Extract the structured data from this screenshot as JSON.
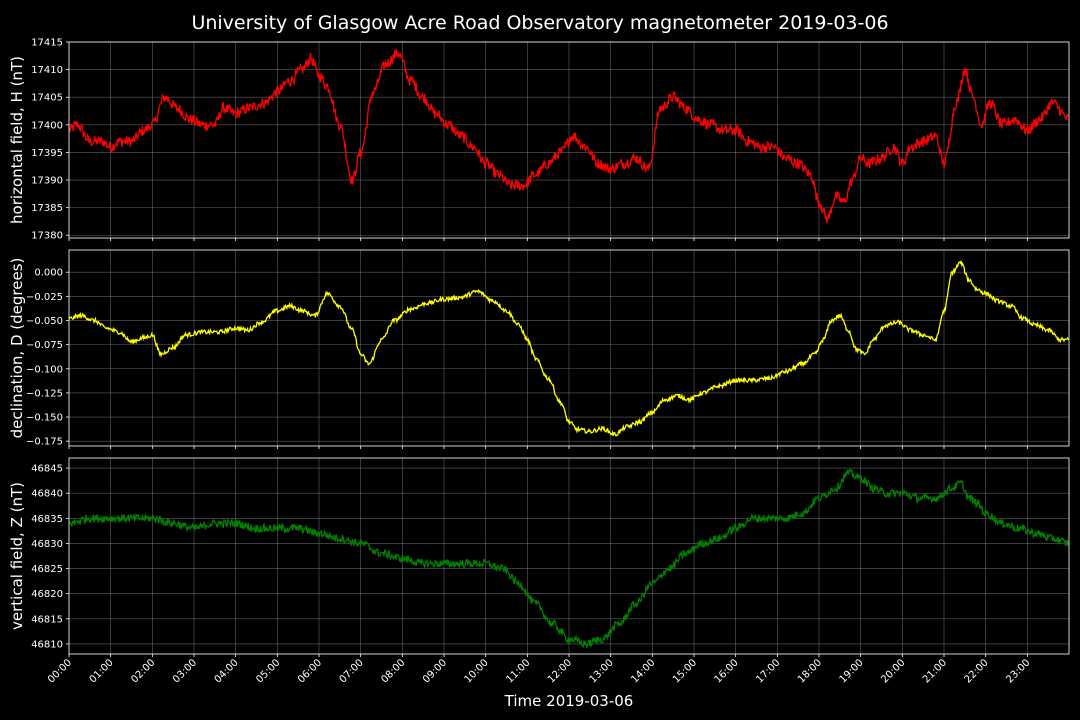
{
  "chart_data": {
    "type": "line",
    "title": "University of Glasgow Acre Road Observatory magnetometer 2019-03-06",
    "xlabel": "Time 2019-03-06",
    "x_ticks": [
      "00:00",
      "01:00",
      "02:00",
      "03:00",
      "04:00",
      "05:00",
      "06:00",
      "07:00",
      "08:00",
      "09:00",
      "10:00",
      "11:00",
      "12:00",
      "13:00",
      "14:00",
      "15:00",
      "16:00",
      "17:00",
      "18:00",
      "19:00",
      "20:00",
      "21:00",
      "22:00",
      "23:00"
    ],
    "xlim_hours": [
      0,
      24
    ],
    "grid": true,
    "panels": [
      {
        "ylabel": "horizontal field, H (nT)",
        "color": "#ff0000",
        "ylim": [
          17379.5,
          17415
        ],
        "yticks": [
          17380,
          17385,
          17390,
          17395,
          17400,
          17405,
          17410,
          17415
        ],
        "ytick_labels": [
          "17380",
          "17385",
          "17390",
          "17395",
          "17400",
          "17405",
          "17410",
          "17415"
        ],
        "noise": 1.0,
        "series": {
          "x_hours": [
            0,
            0.2,
            0.5,
            0.8,
            1.0,
            1.2,
            1.5,
            1.8,
            2.0,
            2.3,
            2.6,
            2.9,
            3.2,
            3.5,
            3.7,
            4.0,
            4.3,
            4.7,
            5.0,
            5.3,
            5.6,
            5.8,
            6.0,
            6.2,
            6.5,
            6.8,
            7.0,
            7.3,
            7.6,
            7.9,
            8.2,
            8.5,
            8.8,
            9.1,
            9.4,
            9.7,
            10.0,
            10.3,
            10.6,
            10.9,
            11.2,
            11.5,
            11.8,
            12.1,
            12.4,
            12.7,
            13.0,
            13.3,
            13.6,
            13.9,
            14.2,
            14.5,
            14.8,
            15.1,
            15.4,
            15.7,
            16.0,
            16.3,
            16.6,
            16.9,
            17.2,
            17.5,
            17.8,
            18.0,
            18.2,
            18.4,
            18.6,
            18.8,
            19.0,
            19.2,
            19.5,
            19.8,
            20.0,
            20.2,
            20.5,
            20.8,
            21.0,
            21.3,
            21.5,
            21.7,
            21.9,
            22.1,
            22.4,
            22.7,
            23.0,
            23.3,
            23.6,
            24.0
          ],
          "y": [
            17399,
            17400,
            17397,
            17397,
            17396,
            17397,
            17397,
            17399,
            17400,
            17405,
            17403,
            17401,
            17400,
            17400,
            17403,
            17402,
            17403,
            17404,
            17406,
            17408,
            17410,
            17412,
            17409,
            17407,
            17400,
            17390,
            17395,
            17406,
            17411,
            17413,
            17408,
            17405,
            17402,
            17400,
            17398,
            17396,
            17393,
            17391,
            17389,
            17389,
            17391,
            17393,
            17395,
            17398,
            17396,
            17393,
            17392,
            17393,
            17394,
            17392,
            17403,
            17405,
            17403,
            17401,
            17400,
            17399,
            17399,
            17397,
            17396,
            17396,
            17394,
            17393,
            17391,
            17386,
            17383,
            17387,
            17386,
            17390,
            17394,
            17393,
            17394,
            17396,
            17393,
            17396,
            17397,
            17398,
            17393,
            17404,
            17410,
            17405,
            17400,
            17404,
            17400,
            17401,
            17399,
            17401,
            17404,
            17401
          ]
        }
      },
      {
        "ylabel": "declination, D (degrees)",
        "color": "#ffff00",
        "ylim": [
          -0.18,
          0.023
        ],
        "yticks": [
          0.0,
          -0.025,
          -0.05,
          -0.075,
          -0.1,
          -0.125,
          -0.15,
          -0.175
        ],
        "ytick_labels": [
          "0.000",
          "−0.025",
          "−0.050",
          "−0.075",
          "−0.100",
          "−0.125",
          "−0.150",
          "−0.175"
        ],
        "noise": 0.0022,
        "series": {
          "x_hours": [
            0,
            0.3,
            0.6,
            0.9,
            1.2,
            1.5,
            1.8,
            2.0,
            2.2,
            2.5,
            2.8,
            3.2,
            3.6,
            4.0,
            4.3,
            4.6,
            5.0,
            5.3,
            5.6,
            5.9,
            6.2,
            6.5,
            6.8,
            7.0,
            7.2,
            7.5,
            7.8,
            8.2,
            8.6,
            9.0,
            9.4,
            9.8,
            10.2,
            10.5,
            10.8,
            11.0,
            11.2,
            11.5,
            11.8,
            12.0,
            12.2,
            12.5,
            12.8,
            13.1,
            13.4,
            13.7,
            14.0,
            14.3,
            14.6,
            14.9,
            15.2,
            15.6,
            16.0,
            16.4,
            16.8,
            17.2,
            17.6,
            17.9,
            18.1,
            18.3,
            18.5,
            18.7,
            18.9,
            19.1,
            19.3,
            19.6,
            19.9,
            20.2,
            20.5,
            20.8,
            21.0,
            21.2,
            21.4,
            21.6,
            21.8,
            22.0,
            22.3,
            22.6,
            22.9,
            23.2,
            23.5,
            23.8,
            24.0
          ],
          "y": [
            -0.048,
            -0.045,
            -0.05,
            -0.058,
            -0.062,
            -0.072,
            -0.068,
            -0.065,
            -0.085,
            -0.078,
            -0.065,
            -0.062,
            -0.062,
            -0.058,
            -0.06,
            -0.052,
            -0.04,
            -0.035,
            -0.04,
            -0.045,
            -0.022,
            -0.035,
            -0.06,
            -0.085,
            -0.095,
            -0.07,
            -0.05,
            -0.038,
            -0.032,
            -0.028,
            -0.026,
            -0.02,
            -0.03,
            -0.04,
            -0.055,
            -0.07,
            -0.09,
            -0.11,
            -0.135,
            -0.155,
            -0.163,
            -0.165,
            -0.162,
            -0.168,
            -0.16,
            -0.155,
            -0.145,
            -0.132,
            -0.128,
            -0.132,
            -0.125,
            -0.118,
            -0.112,
            -0.112,
            -0.11,
            -0.103,
            -0.095,
            -0.085,
            -0.07,
            -0.05,
            -0.045,
            -0.06,
            -0.08,
            -0.085,
            -0.07,
            -0.055,
            -0.052,
            -0.06,
            -0.065,
            -0.07,
            -0.04,
            0.0,
            0.01,
            -0.008,
            -0.018,
            -0.022,
            -0.03,
            -0.035,
            -0.048,
            -0.055,
            -0.06,
            -0.07,
            -0.07
          ]
        }
      },
      {
        "ylabel": "vertical field, Z (nT)",
        "color": "#008000",
        "ylim": [
          46808,
          46847
        ],
        "yticks": [
          46810,
          46815,
          46820,
          46825,
          46830,
          46835,
          46840,
          46845
        ],
        "ytick_labels": [
          "46810",
          "46815",
          "46820",
          "46825",
          "46830",
          "46835",
          "46840",
          "46845"
        ],
        "noise": 0.8,
        "series": {
          "x_hours": [
            0,
            0.5,
            1.0,
            1.5,
            2.0,
            2.5,
            3.0,
            3.5,
            4.0,
            4.5,
            5.0,
            5.5,
            6.0,
            6.5,
            7.0,
            7.5,
            8.0,
            8.5,
            9.0,
            9.5,
            10.0,
            10.4,
            10.8,
            11.2,
            11.6,
            12.0,
            12.4,
            12.8,
            13.2,
            13.6,
            14.0,
            14.4,
            14.8,
            15.2,
            15.6,
            16.0,
            16.4,
            16.8,
            17.2,
            17.6,
            18.0,
            18.4,
            18.7,
            19.0,
            19.3,
            19.6,
            20.0,
            20.4,
            20.8,
            21.2,
            21.4,
            21.6,
            21.8,
            22.0,
            22.4,
            22.8,
            23.2,
            23.6,
            24.0
          ],
          "y": [
            46834,
            46835,
            46835,
            46835,
            46835,
            46834,
            46833,
            46834,
            46834,
            46833,
            46833,
            46833,
            46832,
            46831,
            46830,
            46828,
            46827,
            46826,
            46826,
            46826,
            46826,
            46825,
            46822,
            46818,
            46814,
            46811,
            46810,
            46811,
            46814,
            46818,
            46822,
            46825,
            46828,
            46830,
            46831,
            46833,
            46835,
            46835,
            46835,
            46836,
            46839,
            46841,
            46844,
            46843,
            46841,
            46840,
            46840,
            46839,
            46839,
            46841,
            46842,
            46839,
            46838,
            46836,
            46834,
            46833,
            46832,
            46831,
            46830
          ]
        }
      }
    ]
  }
}
